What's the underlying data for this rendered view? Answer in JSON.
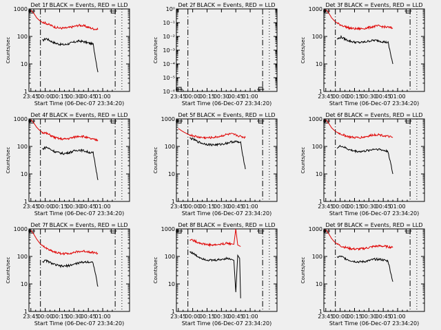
{
  "figure": {
    "background": "#efefef",
    "event_color": "#000000",
    "lld_color": "#e00000"
  },
  "chart_data": [
    {
      "type": "line",
      "panel": "1f",
      "title": "Det 1f BLACK = Events, RED = LLD",
      "xlabel": "Start Time (06-Dec-07 23:34:20)",
      "ylabel": "Counts/sec",
      "y_scale": "log",
      "ylim": [
        1,
        1000
      ],
      "y_ticks": [
        "1",
        "10",
        "100",
        "1000"
      ],
      "x_ticks": [
        "23:45",
        "00:00",
        "00:15",
        "00:30",
        "00:45",
        "01:00"
      ],
      "x": [
        0,
        3,
        6,
        9,
        12,
        16,
        20,
        25,
        30,
        35,
        40,
        45,
        50,
        55,
        60,
        65,
        70
      ],
      "series": [
        {
          "name": "Events",
          "color": "#000000",
          "values": [
            null,
            null,
            null,
            null,
            70,
            85,
            70,
            58,
            52,
            50,
            55,
            62,
            68,
            65,
            58,
            52,
            5
          ]
        },
        {
          "name": "LLD",
          "color": "#e00000",
          "values": [
            900,
            700,
            480,
            380,
            330,
            300,
            260,
            220,
            200,
            200,
            210,
            230,
            255,
            245,
            215,
            190,
            180
          ]
        }
      ],
      "markers": {
        "dash_dot": [
          10,
          88
        ],
        "dotted": [
          95
        ]
      }
    },
    {
      "type": "line",
      "panel": "2f",
      "title": "Det 2f BLACK = Events, RED = LLD",
      "xlabel": "Start Time (06-Dec-07 23:34:20)",
      "ylabel": "Counts/sec",
      "y_scale": "log",
      "ylim": [
        1e-06,
        1
      ],
      "y_ticks": [
        "10⁻⁶",
        "10⁻⁵",
        "10⁻⁴",
        "10⁻³",
        "10⁻²",
        "10⁻¹",
        "10⁰"
      ],
      "x_ticks": [
        "23:45",
        "00:00",
        "00:15",
        "00:30",
        "00:45",
        "01:00"
      ],
      "x": [],
      "series": [],
      "markers": {
        "dash_dot": [
          10,
          88
        ],
        "dotted": [
          95
        ]
      }
    },
    {
      "type": "line",
      "panel": "3f",
      "title": "Det 3f BLACK = Events, RED = LLD",
      "xlabel": "Start Time (06-Dec-07 23:34:20)",
      "ylabel": "Counts/sec",
      "y_scale": "log",
      "ylim": [
        1,
        1000
      ],
      "y_ticks": [
        "1",
        "10",
        "100",
        "1000"
      ],
      "x_ticks": [
        "23:45",
        "00:00",
        "00:15",
        "00:30",
        "00:45",
        "01:00"
      ],
      "x": [
        0,
        3,
        6,
        9,
        12,
        16,
        20,
        25,
        30,
        35,
        40,
        45,
        50,
        55,
        60,
        65,
        70
      ],
      "series": [
        {
          "name": "Events",
          "color": "#000000",
          "values": [
            null,
            null,
            null,
            null,
            80,
            95,
            80,
            68,
            62,
            60,
            62,
            68,
            72,
            70,
            64,
            60,
            10
          ]
        },
        {
          "name": "LLD",
          "color": "#e00000",
          "values": [
            950,
            720,
            480,
            370,
            300,
            260,
            230,
            200,
            190,
            190,
            195,
            210,
            230,
            240,
            225,
            215,
            200
          ]
        }
      ],
      "markers": {
        "dash_dot": [
          10,
          88
        ],
        "dotted": [
          95
        ]
      }
    },
    {
      "type": "line",
      "panel": "4f",
      "title": "Det 4f BLACK = Events, RED = LLD",
      "xlabel": "Start Time (06-Dec-07 23:34:20)",
      "ylabel": "Counts/sec",
      "y_scale": "log",
      "ylim": [
        1,
        1000
      ],
      "y_ticks": [
        "1",
        "10",
        "100",
        "1000"
      ],
      "x_ticks": [
        "23:45",
        "00:00",
        "00:15",
        "00:30",
        "00:45",
        "01:00"
      ],
      "x": [
        0,
        3,
        6,
        9,
        12,
        16,
        20,
        25,
        30,
        35,
        40,
        45,
        50,
        55,
        60,
        65,
        70
      ],
      "series": [
        {
          "name": "Events",
          "color": "#000000",
          "values": [
            null,
            null,
            null,
            null,
            80,
            95,
            80,
            65,
            58,
            55,
            60,
            68,
            75,
            70,
            62,
            58,
            6
          ]
        },
        {
          "name": "LLD",
          "color": "#e00000",
          "values": [
            950,
            720,
            500,
            390,
            330,
            300,
            260,
            210,
            190,
            185,
            195,
            215,
            240,
            230,
            200,
            180,
            170
          ]
        }
      ],
      "markers": {
        "dash_dot": [
          10,
          88
        ],
        "dotted": [
          95
        ]
      }
    },
    {
      "type": "line",
      "panel": "5f",
      "title": "Det 5f BLACK = Events, RED = LLD",
      "xlabel": "Start Time (06-Dec-07 23:34:20)",
      "ylabel": "Counts/sec",
      "y_scale": "log",
      "ylim": [
        1,
        1000
      ],
      "y_ticks": [
        "1",
        "10",
        "100",
        "1000"
      ],
      "x_ticks": [
        "23:45",
        "00:00",
        "00:15",
        "00:30",
        "00:45",
        "01:00"
      ],
      "x": [
        0,
        3,
        6,
        9,
        12,
        16,
        20,
        25,
        30,
        35,
        40,
        45,
        50,
        55,
        60,
        65,
        70
      ],
      "series": [
        {
          "name": "Events",
          "color": "#000000",
          "values": [
            null,
            null,
            null,
            null,
            200,
            180,
            150,
            130,
            120,
            115,
            115,
            120,
            130,
            145,
            150,
            135,
            15
          ]
        },
        {
          "name": "LLD",
          "color": "#e00000",
          "values": [
            450,
            380,
            330,
            290,
            260,
            240,
            220,
            210,
            205,
            210,
            220,
            240,
            270,
            280,
            260,
            230,
            210
          ]
        }
      ],
      "markers": {
        "dash_dot": [
          10,
          88
        ],
        "dotted": [
          95
        ]
      }
    },
    {
      "type": "line",
      "panel": "6f",
      "title": "Det 6f BLACK = Events, RED = LLD",
      "xlabel": "Start Time (06-Dec-07 23:34:20)",
      "ylabel": "Counts/sec",
      "y_scale": "log",
      "ylim": [
        1,
        1000
      ],
      "y_ticks": [
        "1",
        "10",
        "100",
        "1000"
      ],
      "x_ticks": [
        "23:45",
        "00:00",
        "00:15",
        "00:30",
        "00:45",
        "01:00"
      ],
      "x": [
        0,
        3,
        6,
        9,
        12,
        16,
        20,
        25,
        30,
        35,
        40,
        45,
        50,
        55,
        60,
        65,
        70
      ],
      "series": [
        {
          "name": "Events",
          "color": "#000000",
          "values": [
            null,
            null,
            null,
            null,
            90,
            105,
            90,
            75,
            68,
            65,
            67,
            72,
            80,
            80,
            72,
            66,
            10
          ]
        },
        {
          "name": "LLD",
          "color": "#e00000",
          "values": [
            950,
            700,
            480,
            380,
            320,
            280,
            250,
            220,
            210,
            210,
            220,
            240,
            265,
            270,
            250,
            230,
            210
          ]
        }
      ],
      "markers": {
        "dash_dot": [
          10,
          88
        ],
        "dotted": [
          95
        ]
      }
    },
    {
      "type": "line",
      "panel": "7f",
      "title": "Det 7f BLACK = Events, RED = LLD",
      "xlabel": "Start Time (06-Dec-07 23:34:20)",
      "ylabel": "Counts/sec",
      "y_scale": "log",
      "ylim": [
        1,
        1000
      ],
      "y_ticks": [
        "1",
        "10",
        "100",
        "1000"
      ],
      "x_ticks": [
        "23:45",
        "00:00",
        "00:15",
        "00:30",
        "00:45",
        "01:00"
      ],
      "x": [
        0,
        3,
        6,
        9,
        12,
        16,
        20,
        25,
        30,
        35,
        40,
        45,
        50,
        55,
        60,
        65,
        70
      ],
      "series": [
        {
          "name": "Events",
          "color": "#000000",
          "values": [
            null,
            null,
            null,
            null,
            65,
            70,
            60,
            50,
            45,
            44,
            47,
            52,
            58,
            62,
            64,
            60,
            8
          ]
        },
        {
          "name": "LLD",
          "color": "#e00000",
          "values": [
            900,
            650,
            430,
            310,
            240,
            200,
            170,
            145,
            130,
            125,
            130,
            140,
            150,
            155,
            150,
            140,
            130
          ]
        }
      ],
      "markers": {
        "dash_dot": [
          10,
          88
        ],
        "dotted": [
          95
        ]
      }
    },
    {
      "type": "line",
      "panel": "8f",
      "title": "Det 8f BLACK = Events, RED = LLD",
      "xlabel": "Start Time (06-Dec-07 23:34:20)",
      "ylabel": "Counts/sec",
      "y_scale": "log",
      "ylim": [
        1,
        1000
      ],
      "y_ticks": [
        "1",
        "10",
        "100",
        "1000"
      ],
      "x_ticks": [
        "23:45",
        "00:00",
        "00:15",
        "00:30",
        "00:45",
        "01:00"
      ],
      "x": [
        12,
        16,
        20,
        25,
        30,
        35,
        40,
        45,
        50,
        55,
        58,
        60,
        62,
        64,
        65
      ],
      "series": [
        {
          "name": "Events",
          "color": "#000000",
          "values": [
            150,
            125,
            100,
            85,
            75,
            72,
            74,
            78,
            85,
            80,
            72,
            5,
            110,
            85,
            3
          ]
        },
        {
          "name": "LLD",
          "color": "#e00000",
          "values": [
            420,
            380,
            330,
            290,
            270,
            260,
            265,
            280,
            300,
            290,
            275,
            1000,
            260,
            240,
            230
          ]
        }
      ],
      "markers": {
        "dash_dot": [
          10,
          88
        ],
        "dotted": [
          95
        ]
      }
    },
    {
      "type": "line",
      "panel": "9f",
      "title": "Det 9f BLACK = Events, RED = LLD",
      "xlabel": "Start Time (06-Dec-07 23:34:20)",
      "ylabel": "Counts/sec",
      "y_scale": "log",
      "ylim": [
        1,
        1000
      ],
      "y_ticks": [
        "1",
        "10",
        "100",
        "1000"
      ],
      "x_ticks": [
        "23:45",
        "00:00",
        "00:15",
        "00:30",
        "00:45",
        "01:00"
      ],
      "x": [
        0,
        3,
        6,
        9,
        12,
        16,
        20,
        25,
        30,
        35,
        40,
        45,
        50,
        55,
        60,
        65,
        70
      ],
      "series": [
        {
          "name": "Events",
          "color": "#000000",
          "values": [
            null,
            null,
            null,
            null,
            95,
            100,
            85,
            72,
            66,
            63,
            65,
            70,
            78,
            80,
            74,
            68,
            12
          ]
        },
        {
          "name": "LLD",
          "color": "#e00000",
          "values": [
            950,
            680,
            450,
            340,
            280,
            240,
            215,
            195,
            185,
            185,
            195,
            210,
            230,
            240,
            235,
            225,
            210
          ]
        }
      ],
      "markers": {
        "dash_dot": [
          10,
          88
        ],
        "dotted": [
          95
        ]
      }
    }
  ]
}
